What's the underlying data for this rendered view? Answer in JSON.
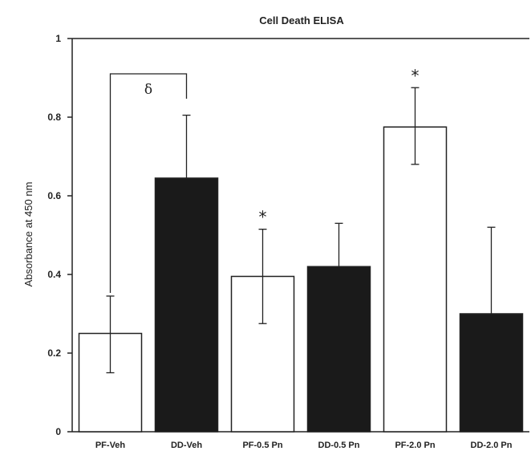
{
  "chart_data": {
    "type": "bar",
    "title": "Cell Death ELISA",
    "xlabel": "",
    "ylabel": "Absorbance at 450 nm",
    "ylim": [
      0,
      1
    ],
    "yticks": [
      "0",
      "0.2",
      "0.4",
      "0.6",
      "0.8",
      "1"
    ],
    "categories": [
      "PF-Veh",
      "DD-Veh",
      "PF-0.5 Pn",
      "DD-0.5 Pn",
      "PF-2.0 Pn",
      "DD-2.0 Pn"
    ],
    "values": [
      0.25,
      0.645,
      0.395,
      0.42,
      0.775,
      0.3
    ],
    "errors_upper": [
      0.345,
      0.805,
      0.515,
      0.53,
      0.875,
      0.52
    ],
    "errors_lower": [
      0.15,
      0.0,
      0.275,
      0.0,
      0.68,
      0.0
    ],
    "bar_fills": [
      "white",
      "black",
      "white",
      "black",
      "white",
      "black"
    ],
    "significance_marks": [
      {
        "category": "PF-0.5 Pn",
        "symbol": "*"
      },
      {
        "category": "PF-2.0 Pn",
        "symbol": "*"
      }
    ],
    "bracket": {
      "from": "PF-Veh",
      "to": "DD-Veh",
      "symbol": "δ"
    },
    "grid": false,
    "colors": {
      "white_bar": "#ffffff",
      "black_bar": "#1a1a1a",
      "axis": "#222222"
    }
  }
}
